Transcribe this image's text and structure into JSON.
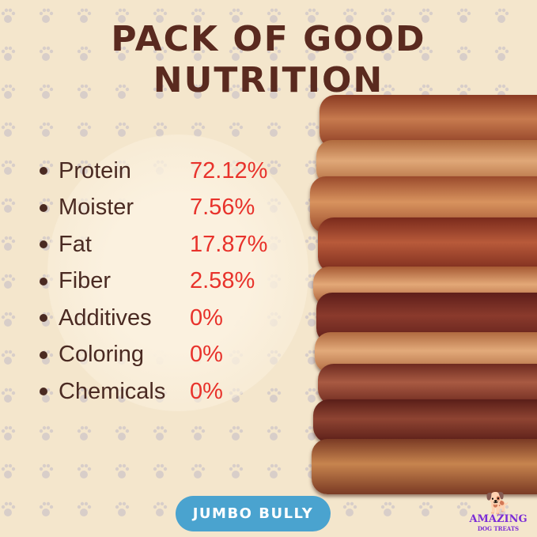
{
  "title": {
    "line1": "PACK OF GOOD",
    "line2": "NUTRITION"
  },
  "nutrition": [
    {
      "label": "Protein",
      "value": "72.12%"
    },
    {
      "label": "Moister",
      "value": "7.56%"
    },
    {
      "label": "Fat",
      "value": "17.87%"
    },
    {
      "label": "Fiber",
      "value": "2.58%"
    },
    {
      "label": "Additives",
      "value": "0%"
    },
    {
      "label": "Coloring",
      "value": "0%"
    },
    {
      "label": "Chemicals",
      "value": "0%"
    }
  ],
  "badge": "JUMBO BULLY",
  "logo": {
    "line1": "AMAZING",
    "line2": "DOG TREATS",
    "icon": "dog-icon"
  },
  "colors": {
    "title": "#5a2a1f",
    "value": "#e8322b",
    "badge": "#4aa3cf",
    "logo": "#7a2bd6",
    "background": "#f4e6cc"
  }
}
